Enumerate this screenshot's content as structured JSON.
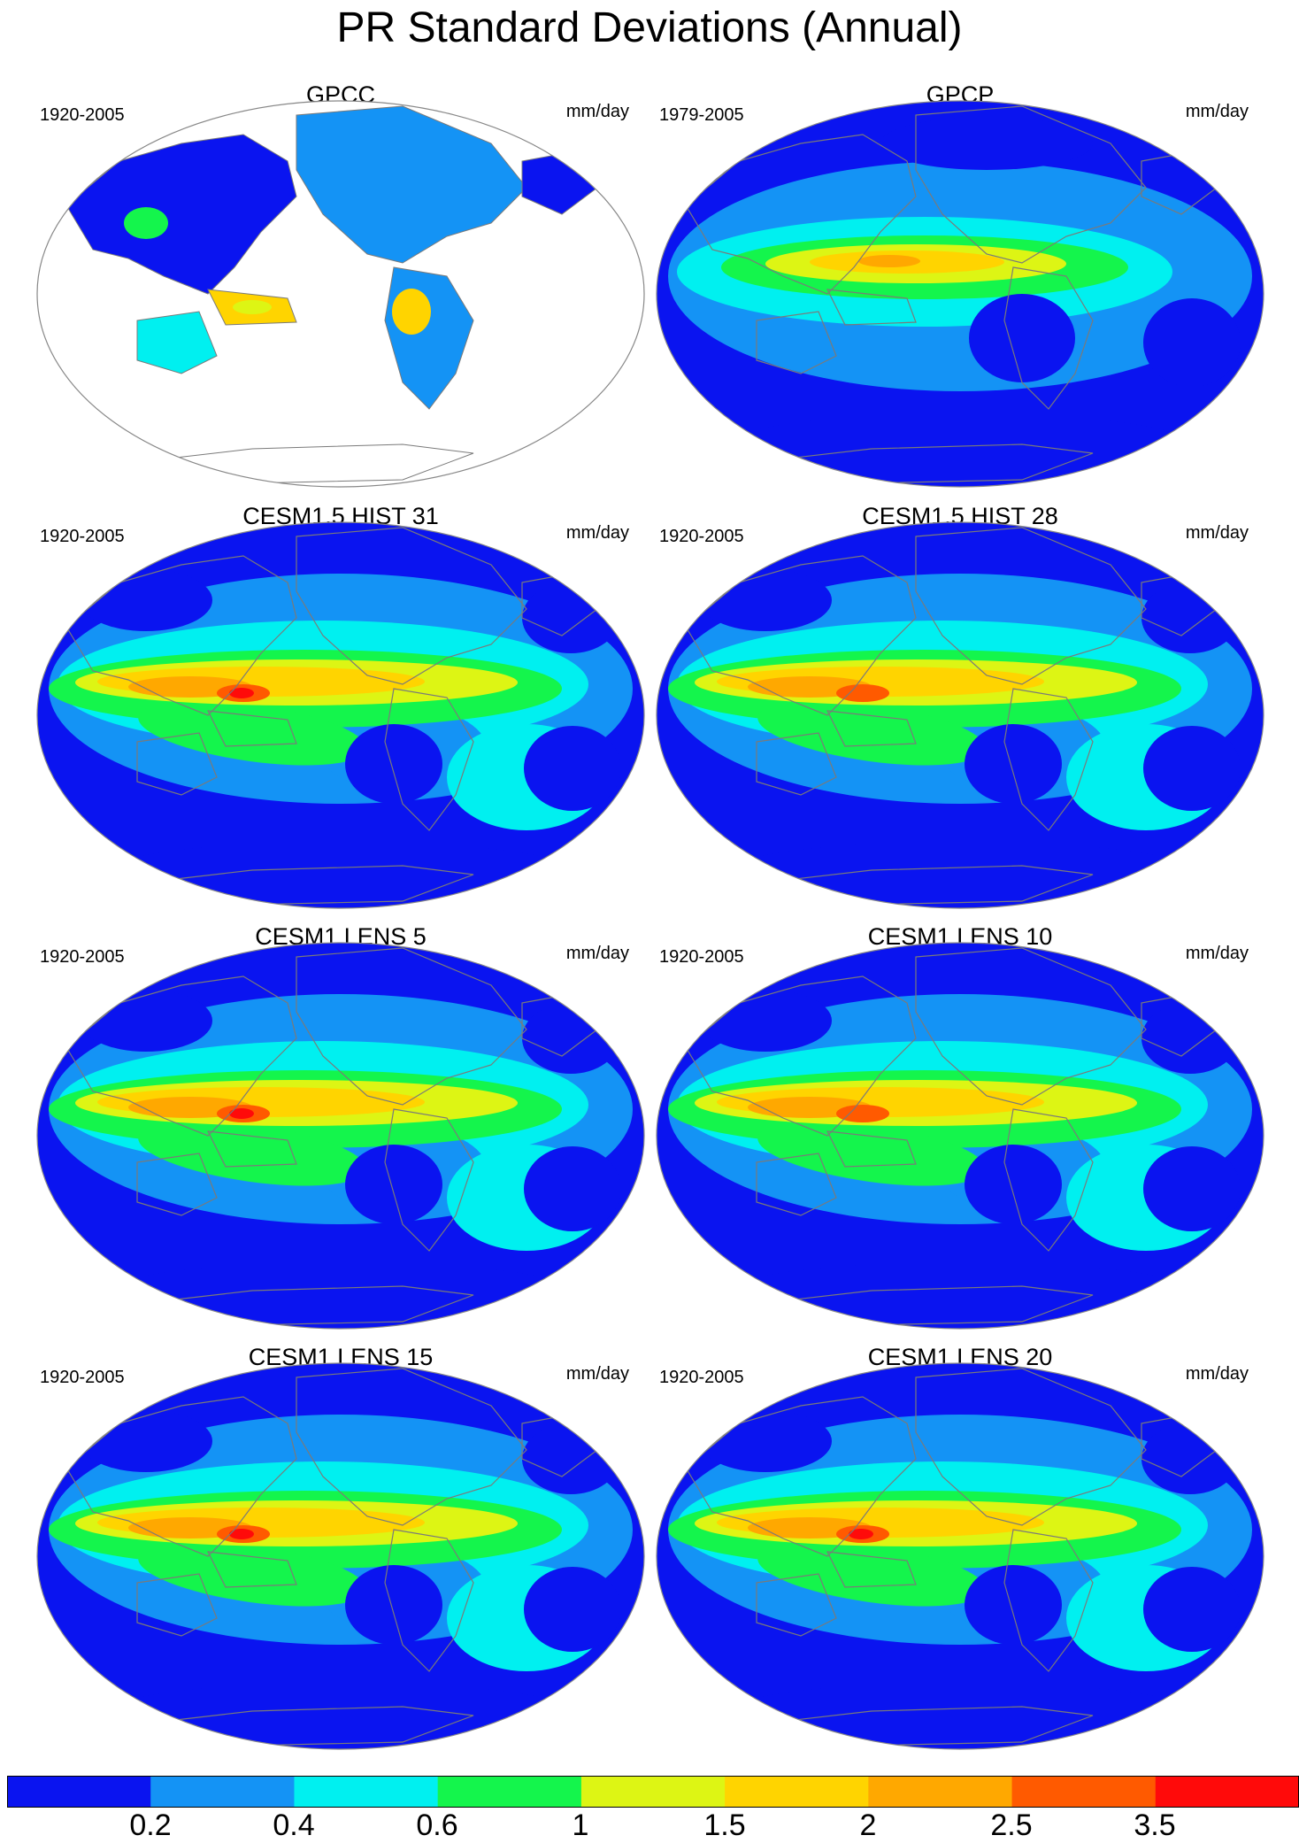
{
  "title": "PR Standard Deviations (Annual)",
  "panels": [
    {
      "title": "GPCC",
      "period": "1920-2005",
      "units": "mm/day",
      "type": "land"
    },
    {
      "title": "GPCP",
      "period": "1979-2005",
      "units": "mm/day",
      "type": "obs"
    },
    {
      "title": "CESM1.5 HIST 31",
      "period": "1920-2005",
      "units": "mm/day",
      "type": "model"
    },
    {
      "title": "CESM1.5 HIST 28",
      "period": "1920-2005",
      "units": "mm/day",
      "type": "model"
    },
    {
      "title": "CESM1 LENS 5",
      "period": "1920-2005",
      "units": "mm/day",
      "type": "model"
    },
    {
      "title": "CESM1 LENS 10",
      "period": "1920-2005",
      "units": "mm/day",
      "type": "model"
    },
    {
      "title": "CESM1 LENS 15",
      "period": "1920-2005",
      "units": "mm/day",
      "type": "model"
    },
    {
      "title": "CESM1 LENS 20",
      "period": "1920-2005",
      "units": "mm/day",
      "type": "model"
    }
  ],
  "colorbar": {
    "labels": [
      "0.2",
      "0.4",
      "0.6",
      "1",
      "1.5",
      "2",
      "2.5",
      "3.5"
    ],
    "colors": [
      "#0a14f0",
      "#1493f5",
      "#00f0f0",
      "#14f54c",
      "#ddf514",
      "#ffd400",
      "#ffa800",
      "#ff5a00",
      "#ff0a0a"
    ]
  },
  "palette": {
    "ocean_dry": "#0a14f0",
    "low": "#1493f5",
    "mid": "#00f0f0",
    "moderate": "#14f54c",
    "high": "#ddf514",
    "higher": "#ffd400",
    "peak": "#ffa800",
    "extreme": "#ff5a00",
    "max": "#ff0a0a",
    "coast": "#7a7a7a",
    "outline": "#888888"
  }
}
